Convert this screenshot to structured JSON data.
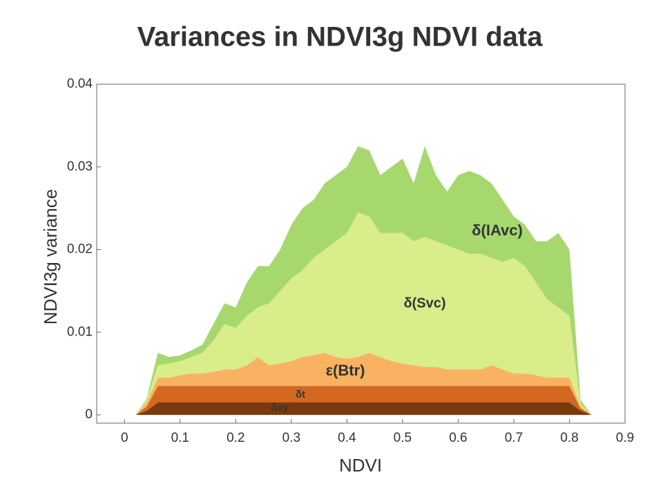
{
  "chart_data": {
    "type": "stacked_area",
    "title": "Variances in NDVI3g NDVI data",
    "x_label": "NDVI",
    "y_label": "NDVI3g variance",
    "x": [
      0.02,
      0.04,
      0.06,
      0.08,
      0.1,
      0.12,
      0.14,
      0.16,
      0.18,
      0.2,
      0.22,
      0.24,
      0.26,
      0.28,
      0.3,
      0.32,
      0.34,
      0.36,
      0.38,
      0.4,
      0.42,
      0.44,
      0.46,
      0.48,
      0.5,
      0.52,
      0.54,
      0.56,
      0.58,
      0.6,
      0.62,
      0.64,
      0.66,
      0.68,
      0.7,
      0.72,
      0.74,
      0.76,
      0.78,
      0.8,
      0.82,
      0.84
    ],
    "series": [
      {
        "name": "δxy",
        "color": "#7a3a0e",
        "values": [
          0,
          0.0005,
          0.0015,
          0.0015,
          0.0015,
          0.0015,
          0.0015,
          0.0015,
          0.0015,
          0.0015,
          0.0015,
          0.0015,
          0.0015,
          0.0015,
          0.0015,
          0.0015,
          0.0015,
          0.0015,
          0.0015,
          0.0015,
          0.0015,
          0.0015,
          0.0015,
          0.0015,
          0.0015,
          0.0015,
          0.0015,
          0.0015,
          0.0015,
          0.0015,
          0.0015,
          0.0015,
          0.0015,
          0.0015,
          0.0015,
          0.0015,
          0.0015,
          0.0015,
          0.0015,
          0.0015,
          0.0005,
          0
        ]
      },
      {
        "name": "δt",
        "color": "#d2691e",
        "values": [
          0,
          0.0005,
          0.002,
          0.002,
          0.002,
          0.002,
          0.002,
          0.002,
          0.002,
          0.002,
          0.002,
          0.002,
          0.002,
          0.002,
          0.002,
          0.002,
          0.002,
          0.002,
          0.002,
          0.002,
          0.002,
          0.002,
          0.002,
          0.002,
          0.002,
          0.002,
          0.002,
          0.002,
          0.002,
          0.002,
          0.002,
          0.002,
          0.002,
          0.002,
          0.002,
          0.002,
          0.002,
          0.002,
          0.002,
          0.002,
          0.0003,
          0
        ]
      },
      {
        "name": "ε(Btr)",
        "color": "#f8b262",
        "values": [
          0,
          0.0005,
          0.001,
          0.001,
          0.0013,
          0.0015,
          0.0015,
          0.0017,
          0.002,
          0.002,
          0.0025,
          0.0035,
          0.0025,
          0.0027,
          0.003,
          0.0035,
          0.0037,
          0.004,
          0.0035,
          0.0033,
          0.0035,
          0.004,
          0.0035,
          0.003,
          0.0027,
          0.0025,
          0.0023,
          0.0023,
          0.002,
          0.002,
          0.002,
          0.002,
          0.0025,
          0.002,
          0.0015,
          0.0015,
          0.0013,
          0.001,
          0.001,
          0.001,
          0.0002,
          0
        ]
      },
      {
        "name": "δ(Svc)",
        "color": "#d9ed8a",
        "values": [
          0,
          0.0003,
          0.0015,
          0.0017,
          0.0017,
          0.002,
          0.0025,
          0.0038,
          0.0055,
          0.005,
          0.006,
          0.006,
          0.0075,
          0.0088,
          0.01,
          0.0105,
          0.0118,
          0.0125,
          0.014,
          0.0152,
          0.0175,
          0.0165,
          0.015,
          0.0155,
          0.0158,
          0.015,
          0.0157,
          0.0152,
          0.015,
          0.0145,
          0.014,
          0.014,
          0.013,
          0.013,
          0.014,
          0.013,
          0.0112,
          0.0095,
          0.0085,
          0.0075,
          0.0003,
          0
        ]
      },
      {
        "name": "δ(IAvc)",
        "color": "#a6d86e",
        "values": [
          0,
          0.0002,
          0.0015,
          0.0008,
          0.0007,
          0.0008,
          0.001,
          0.002,
          0.0025,
          0.0025,
          0.004,
          0.005,
          0.0045,
          0.005,
          0.0065,
          0.0075,
          0.007,
          0.008,
          0.008,
          0.008,
          0.008,
          0.008,
          0.007,
          0.008,
          0.009,
          0.007,
          0.011,
          0.008,
          0.0065,
          0.009,
          0.01,
          0.0095,
          0.009,
          0.0075,
          0.005,
          0.005,
          0.005,
          0.007,
          0.009,
          0.008,
          0.0005,
          0
        ]
      }
    ],
    "xlim": [
      -0.05,
      0.9
    ],
    "ylim": [
      -0.001,
      0.04
    ],
    "xticks": [
      0,
      0.1,
      0.2,
      0.3,
      0.4,
      0.5,
      0.6,
      0.7,
      0.8,
      0.9
    ],
    "yticks": [
      0,
      0.01,
      0.02,
      0.03,
      0.04
    ]
  }
}
